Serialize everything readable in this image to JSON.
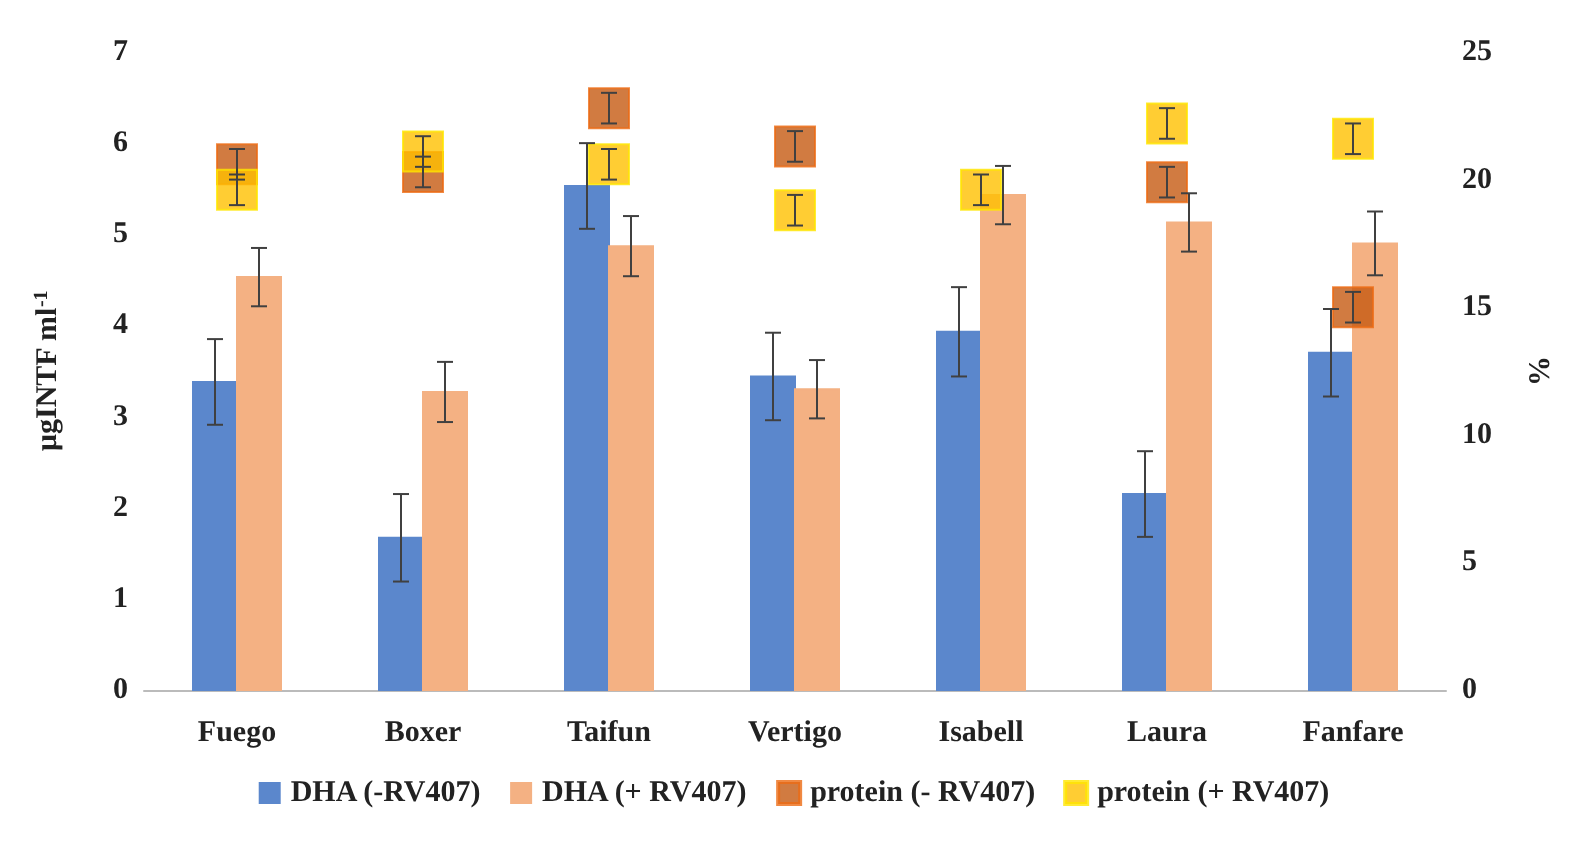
{
  "chart_data": {
    "type": "bar",
    "categories": [
      "Fuego",
      "Boxer",
      "Taifun",
      "Vertigo",
      "Isabell",
      "Laura",
      "Fanfare"
    ],
    "series": [
      {
        "name": "DHA (-RV407)",
        "color": "#5b87cc",
        "values": [
          3.38,
          1.67,
          5.53,
          3.44,
          3.93,
          2.15,
          3.7
        ],
        "errors": [
          0.47,
          0.48,
          0.47,
          0.48,
          0.49,
          0.47,
          0.48
        ]
      },
      {
        "name": "DHA (+ RV407)",
        "color": "#f4b183",
        "values": [
          4.53,
          3.27,
          4.87,
          3.3,
          5.43,
          5.13,
          4.9
        ],
        "errors": [
          0.32,
          0.33,
          0.33,
          0.32,
          0.32,
          0.32,
          0.35
        ]
      },
      {
        "name": "protein (- RV407)",
        "type": "scatter",
        "axis": "y2",
        "color": "#c55a11",
        "values": [
          20.6,
          20.3,
          22.8,
          21.3,
          null,
          19.9,
          15.0
        ],
        "errors": [
          0.6,
          0.6,
          0.6,
          0.6,
          null,
          0.6,
          0.6
        ]
      },
      {
        "name": "protein (+ RV407)",
        "type": "scatter",
        "axis": "y2",
        "color": "#ffc000",
        "values": [
          19.6,
          21.1,
          20.6,
          18.8,
          19.6,
          22.2,
          21.6
        ],
        "errors": [
          0.6,
          0.6,
          0.6,
          0.6,
          0.6,
          0.6,
          0.6
        ]
      }
    ],
    "ylabel": "μgINTF ml$^{-1}$",
    "y2label": "%",
    "ylim": [
      0,
      7
    ],
    "yticks": [
      0,
      1,
      2,
      3,
      4,
      5,
      6,
      7
    ],
    "y2lim": [
      0,
      25
    ],
    "y2ticks": [
      0,
      5,
      10,
      15,
      20,
      25
    ],
    "marker": "square",
    "legend": "bottom",
    "grid": false
  }
}
